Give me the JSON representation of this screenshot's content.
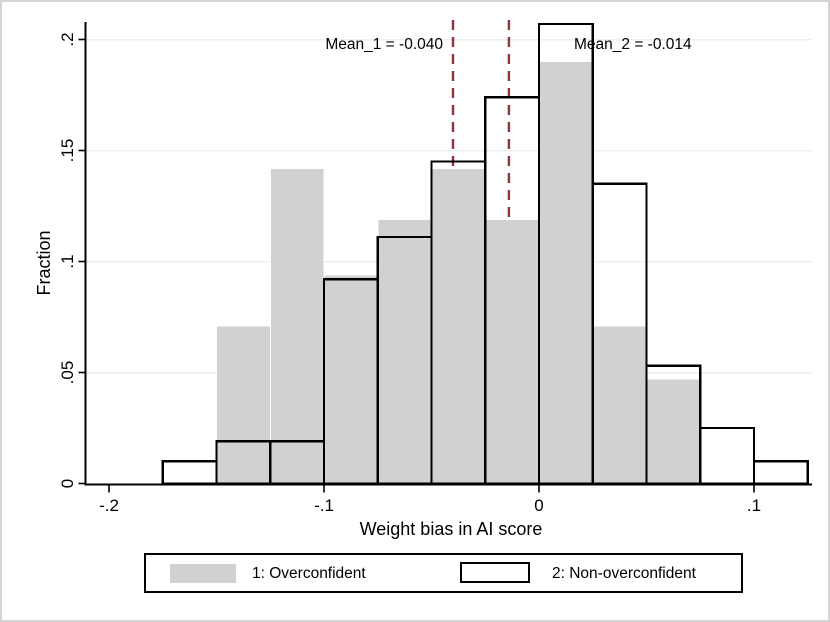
{
  "chart_data": {
    "type": "bar",
    "subtype": "overlaid-histogram",
    "title": "",
    "xlabel": "Weight bias in AI score",
    "ylabel": "Fraction",
    "xlim": [
      -0.225,
      0.127
    ],
    "ylim": [
      0,
      0.21
    ],
    "grid": true,
    "gridline_color": "#eaf0ef",
    "mean_line_color": "#90353b",
    "x_ticks": [
      {
        "value": -0.2,
        "label": "-.2"
      },
      {
        "value": -0.1,
        "label": "-.1"
      },
      {
        "value": 0,
        "label": "0"
      },
      {
        "value": 0.1,
        "label": ".1"
      }
    ],
    "y_ticks": [
      {
        "value": 0,
        "label": "0"
      },
      {
        "value": 0.05,
        "label": ".05"
      },
      {
        "value": 0.1,
        "label": ".1"
      },
      {
        "value": 0.15,
        "label": ".15"
      },
      {
        "value": 0.2,
        "label": ".2"
      }
    ],
    "bins": {
      "start": -0.175,
      "width": 0.025
    },
    "bin_edges": [
      -0.175,
      -0.15,
      -0.125,
      -0.1,
      -0.075,
      -0.05,
      -0.025,
      0,
      0.025,
      0.05,
      0.075,
      0.1,
      0.125
    ],
    "series": [
      {
        "name": "1: Overconfident",
        "style": "filled",
        "color": "#d1d1d1",
        "values": [
          0,
          0.071,
          0.142,
          0.094,
          0.119,
          0.142,
          0.119,
          0.19,
          0.071,
          0.047,
          0,
          0
        ]
      },
      {
        "name": "2: Non-overconfident",
        "style": "hollow",
        "outline": "#000000",
        "values": [
          0.01,
          0.019,
          0.019,
          0.092,
          0.111,
          0.145,
          0.174,
          0.207,
          0.135,
          0.053,
          0.025,
          0.01
        ]
      }
    ],
    "mean_lines": [
      {
        "label": "Mean_1 = -0.040",
        "value": -0.04
      },
      {
        "label": "Mean_2 = -0.014",
        "value": -0.014
      }
    ],
    "legend_position": "bottom"
  },
  "legend": {
    "items": [
      {
        "label": "1: Overconfident",
        "swatch": "gray-filled"
      },
      {
        "label": "2: Non-overconfident",
        "swatch": "white-outlined"
      }
    ]
  }
}
